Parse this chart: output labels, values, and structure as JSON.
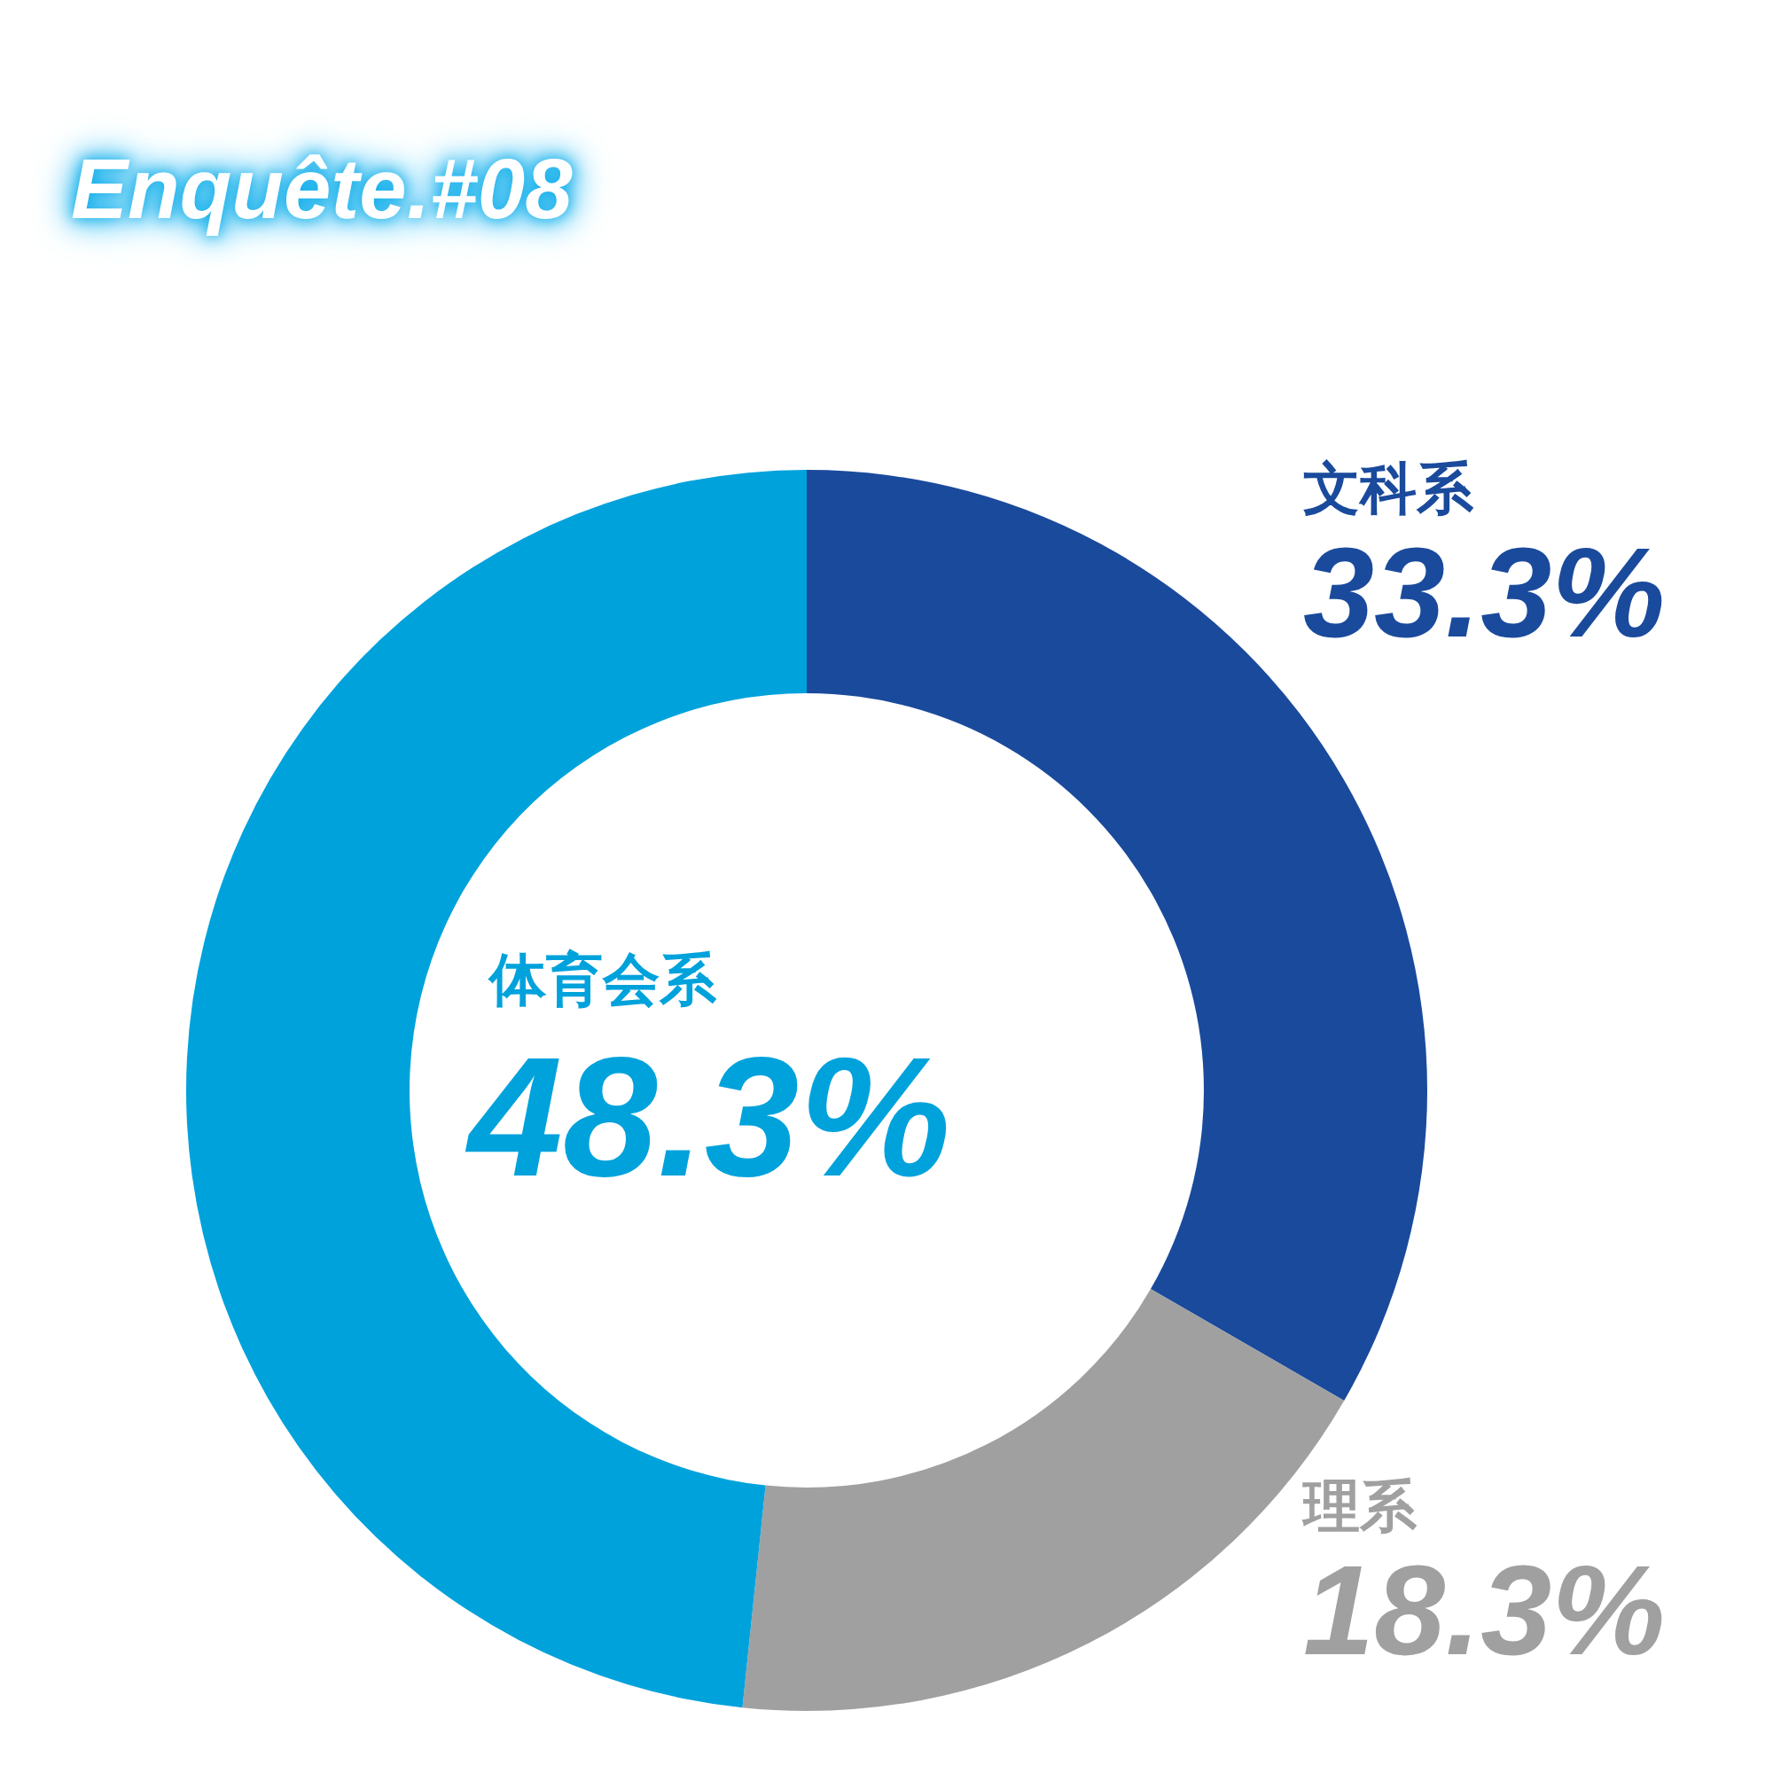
{
  "chart_data": {
    "type": "donut",
    "title": "Enquête.#08",
    "categories": [
      "文科系",
      "理系",
      "体育会系"
    ],
    "values": [
      33.3,
      18.3,
      48.3
    ],
    "value_labels": [
      "33.3%",
      "18.3%",
      "48.3%"
    ],
    "colors": [
      "#1a4a9c",
      "#a0a0a0",
      "#00a2dc"
    ],
    "legend": false
  }
}
